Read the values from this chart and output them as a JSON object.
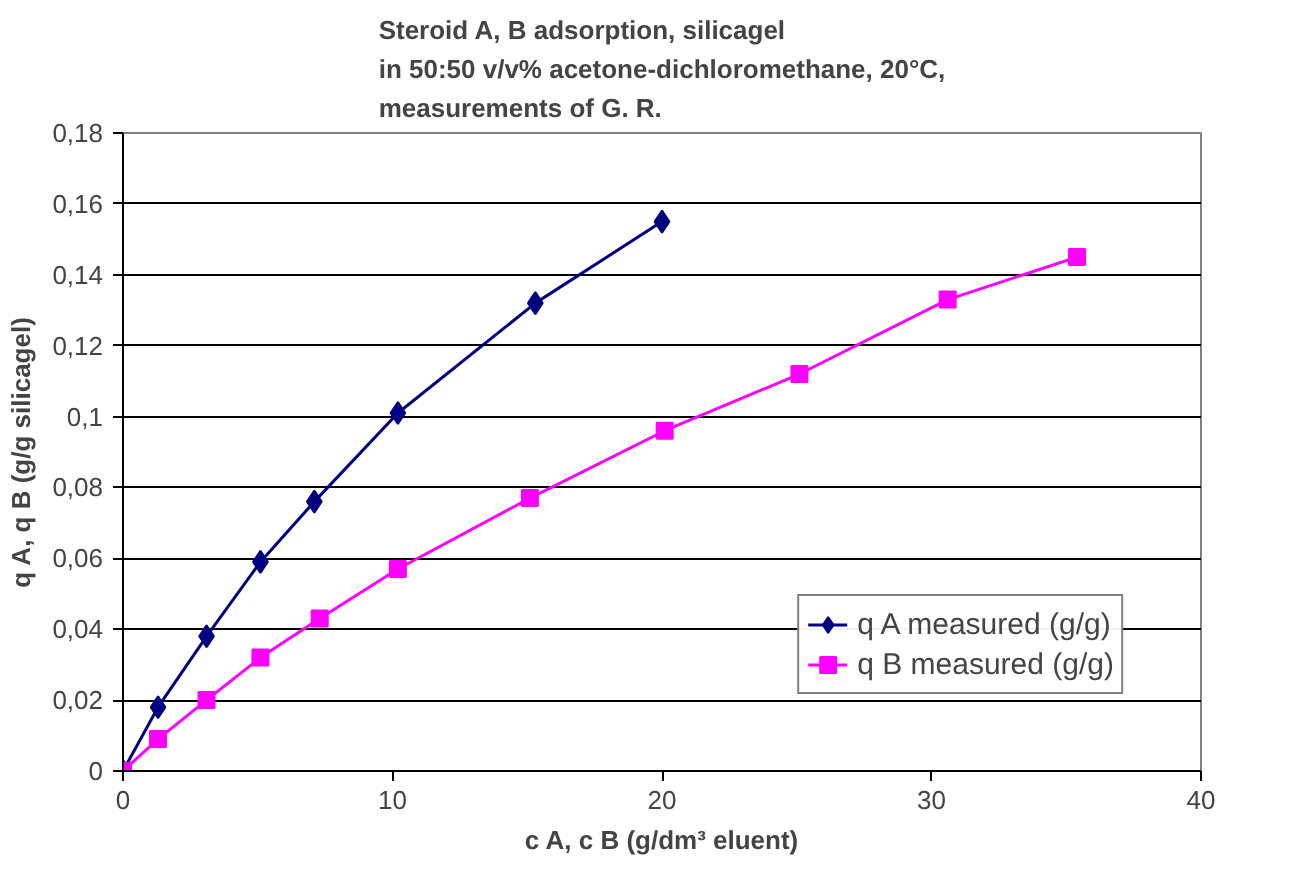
{
  "chart_data": {
    "type": "line",
    "title": "Steroid A, B adsorption, silicagel\nin 50:50 v/v% acetone-dichloromethane, 20°C,\nmeasurements of G. R.",
    "xlabel": "c A, c B (g/dm³ eluent)",
    "ylabel": "q A, q B (g/g silicagel)",
    "series": [
      {
        "name": "q A measured (g/g)",
        "color": "#000080",
        "marker": "diamond",
        "x": [
          0,
          1.3,
          3.1,
          5.1,
          7.1,
          10.2,
          15.3,
          20.0
        ],
        "values": [
          0,
          0.018,
          0.038,
          0.059,
          0.076,
          0.101,
          0.132,
          0.155
        ]
      },
      {
        "name": "q B measured (g/g)",
        "color": "#ff00ff",
        "marker": "square",
        "x": [
          0,
          1.3,
          3.1,
          5.1,
          7.3,
          10.2,
          15.1,
          20.1,
          25.1,
          30.6,
          35.4
        ],
        "values": [
          0,
          0.009,
          0.02,
          0.032,
          0.043,
          0.057,
          0.077,
          0.096,
          0.112,
          0.133,
          0.145
        ]
      }
    ],
    "xlim": [
      0,
      40
    ],
    "xticks": [
      0,
      10,
      20,
      30,
      40
    ],
    "ylim": [
      0,
      0.18
    ],
    "yticks": [
      0,
      {
        "value": 0.02,
        "label": "0,02"
      },
      {
        "value": 0.04,
        "label": "0,04"
      },
      {
        "value": 0.06,
        "label": "0,06"
      },
      {
        "value": 0.08,
        "label": "0,08"
      },
      {
        "value": 0.1,
        "label": "0,1"
      },
      {
        "value": 0.12,
        "label": "0,12"
      },
      {
        "value": 0.14,
        "label": "0,14"
      },
      {
        "value": 0.16,
        "label": "0,16"
      },
      {
        "value": 0.18,
        "label": "0,18"
      }
    ],
    "grid": "y",
    "legend": "bottom right",
    "line_style": "solid"
  }
}
